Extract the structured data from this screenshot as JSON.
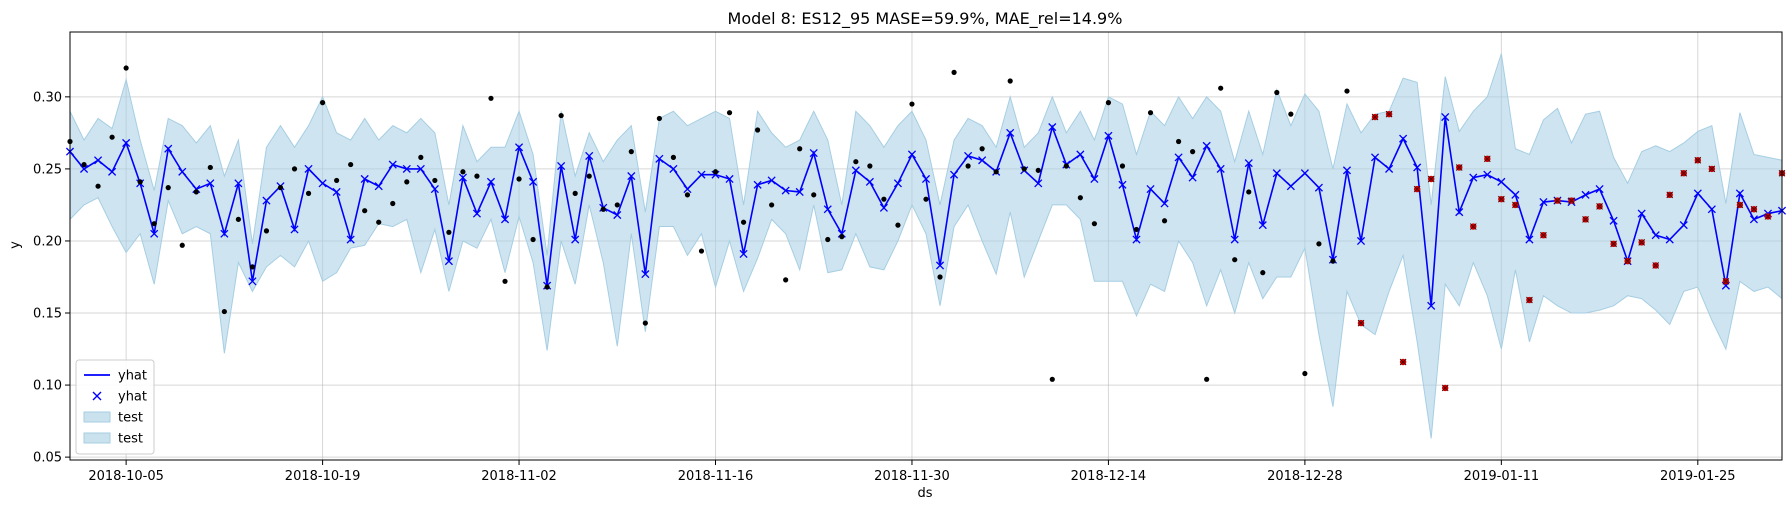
{
  "chart_data": {
    "type": "line",
    "title": "Model 8: ES12_95 MASE=59.9%, MAE_rel=14.9%",
    "xlabel": "ds",
    "ylabel": "y",
    "x_start": "2018-10-01",
    "x_end": "2019-01-31",
    "ylim": [
      0.048,
      0.345
    ],
    "xticks": [
      "2018-10-05",
      "2018-10-19",
      "2018-11-02",
      "2018-11-16",
      "2018-11-30",
      "2018-12-14",
      "2018-12-28",
      "2019-01-11",
      "2019-01-25"
    ],
    "yticks": [
      "0.05",
      "0.10",
      "0.15",
      "0.20",
      "0.25",
      "0.30"
    ],
    "grid": true,
    "legend": {
      "position": "lower-left",
      "entries": [
        "yhat",
        "yhat",
        "test",
        "test"
      ]
    },
    "colors": {
      "line": "#0000ff",
      "band": "#a6cee3",
      "actual": "#000000",
      "test_points": "#cc0000"
    },
    "yhat": [
      0.262,
      0.25,
      0.256,
      0.248,
      0.268,
      0.24,
      0.205,
      0.264,
      0.248,
      0.236,
      0.24,
      0.205,
      0.24,
      0.172,
      0.228,
      0.238,
      0.208,
      0.25,
      0.24,
      0.234,
      0.201,
      0.243,
      0.238,
      0.253,
      0.25,
      0.25,
      0.236,
      0.186,
      0.244,
      0.219,
      0.241,
      0.215,
      0.265,
      0.241,
      0.169,
      0.252,
      0.201,
      0.259,
      0.223,
      0.218,
      0.245,
      0.177,
      0.257,
      0.25,
      0.236,
      0.246,
      0.246,
      0.243,
      0.191,
      0.239,
      0.242,
      0.235,
      0.234,
      0.261,
      0.222,
      0.205,
      0.249,
      0.241,
      0.223,
      0.24,
      0.26,
      0.243,
      0.183,
      0.246,
      0.259,
      0.256,
      0.248,
      0.275,
      0.249,
      0.24,
      0.279,
      0.253,
      0.26,
      0.243,
      0.273,
      0.239,
      0.201,
      0.236,
      0.226,
      0.258,
      0.244,
      0.266,
      0.25,
      0.201,
      0.254,
      0.211,
      0.247,
      0.238,
      0.247,
      0.237,
      0.187,
      0.249,
      0.2,
      0.258,
      0.25,
      0.271,
      0.251,
      0.155,
      0.286,
      0.22,
      0.244,
      0.246,
      0.241,
      0.232,
      0.201,
      0.227,
      0.228,
      0.227,
      0.232,
      0.236,
      0.214,
      0.186,
      0.219,
      0.204,
      0.201,
      0.211,
      0.233,
      0.222,
      0.169,
      0.233,
      0.215,
      0.219,
      0.221
    ],
    "upper": [
      0.29,
      0.27,
      0.285,
      0.278,
      0.312,
      0.27,
      0.235,
      0.285,
      0.28,
      0.268,
      0.28,
      0.245,
      0.27,
      0.198,
      0.265,
      0.28,
      0.265,
      0.28,
      0.3,
      0.275,
      0.27,
      0.285,
      0.27,
      0.28,
      0.275,
      0.285,
      0.275,
      0.225,
      0.28,
      0.255,
      0.265,
      0.265,
      0.29,
      0.26,
      0.19,
      0.29,
      0.245,
      0.275,
      0.255,
      0.27,
      0.28,
      0.22,
      0.285,
      0.29,
      0.28,
      0.285,
      0.29,
      0.285,
      0.225,
      0.29,
      0.275,
      0.265,
      0.27,
      0.29,
      0.27,
      0.225,
      0.29,
      0.28,
      0.265,
      0.28,
      0.29,
      0.27,
      0.225,
      0.27,
      0.285,
      0.28,
      0.265,
      0.3,
      0.265,
      0.275,
      0.3,
      0.275,
      0.29,
      0.27,
      0.3,
      0.295,
      0.26,
      0.29,
      0.28,
      0.3,
      0.285,
      0.3,
      0.29,
      0.255,
      0.29,
      0.26,
      0.305,
      0.28,
      0.302,
      0.29,
      0.25,
      0.295,
      0.275,
      0.288,
      0.29,
      0.313,
      0.31,
      0.225,
      0.314,
      0.276,
      0.29,
      0.3,
      0.33,
      0.264,
      0.26,
      0.284,
      0.292,
      0.268,
      0.288,
      0.29,
      0.258,
      0.24,
      0.262,
      0.266,
      0.262,
      0.268,
      0.276,
      0.28,
      0.226,
      0.289,
      0.26,
      0.258,
      0.256
    ],
    "lower": [
      0.215,
      0.225,
      0.23,
      0.21,
      0.192,
      0.205,
      0.17,
      0.228,
      0.205,
      0.21,
      0.205,
      0.122,
      0.185,
      0.165,
      0.182,
      0.19,
      0.182,
      0.2,
      0.172,
      0.178,
      0.195,
      0.197,
      0.212,
      0.21,
      0.215,
      0.178,
      0.208,
      0.165,
      0.2,
      0.195,
      0.215,
      0.178,
      0.217,
      0.185,
      0.124,
      0.2,
      0.17,
      0.225,
      0.185,
      0.127,
      0.205,
      0.137,
      0.21,
      0.21,
      0.19,
      0.205,
      0.168,
      0.2,
      0.165,
      0.188,
      0.215,
      0.205,
      0.18,
      0.225,
      0.178,
      0.18,
      0.205,
      0.182,
      0.18,
      0.2,
      0.225,
      0.205,
      0.155,
      0.21,
      0.225,
      0.2,
      0.177,
      0.22,
      0.175,
      0.2,
      0.225,
      0.225,
      0.215,
      0.172,
      0.172,
      0.172,
      0.148,
      0.17,
      0.165,
      0.2,
      0.185,
      0.155,
      0.18,
      0.15,
      0.185,
      0.16,
      0.175,
      0.175,
      0.195,
      0.135,
      0.085,
      0.165,
      0.142,
      0.135,
      0.165,
      0.19,
      0.13,
      0.063,
      0.17,
      0.155,
      0.185,
      0.162,
      0.125,
      0.18,
      0.13,
      0.162,
      0.155,
      0.15,
      0.15,
      0.152,
      0.155,
      0.162,
      0.16,
      0.152,
      0.142,
      0.165,
      0.168,
      0.145,
      0.125,
      0.172,
      0.165,
      0.168,
      0.16
    ],
    "actual_points": [
      [
        0,
        0.269
      ],
      [
        1,
        0.253
      ],
      [
        2,
        0.238
      ],
      [
        3,
        0.272
      ],
      [
        4,
        0.32
      ],
      [
        5,
        0.241
      ],
      [
        6,
        0.212
      ],
      [
        7,
        0.237
      ],
      [
        8,
        0.197
      ],
      [
        9,
        0.234
      ],
      [
        10,
        0.251
      ],
      [
        11,
        0.151
      ],
      [
        12,
        0.215
      ],
      [
        13,
        0.182
      ],
      [
        14,
        0.207
      ],
      [
        15,
        0.237
      ],
      [
        16,
        0.25
      ],
      [
        17,
        0.233
      ],
      [
        18,
        0.296
      ],
      [
        19,
        0.242
      ],
      [
        20,
        0.253
      ],
      [
        21,
        0.221
      ],
      [
        22,
        0.213
      ],
      [
        23,
        0.226
      ],
      [
        24,
        0.241
      ],
      [
        25,
        0.258
      ],
      [
        26,
        0.242
      ],
      [
        27,
        0.206
      ],
      [
        28,
        0.248
      ],
      [
        29,
        0.245
      ],
      [
        30,
        0.299
      ],
      [
        31,
        0.172
      ],
      [
        32,
        0.243
      ],
      [
        33,
        0.201
      ],
      [
        34,
        0.168
      ],
      [
        35,
        0.287
      ],
      [
        36,
        0.233
      ],
      [
        37,
        0.245
      ],
      [
        38,
        0.222
      ],
      [
        39,
        0.225
      ],
      [
        40,
        0.262
      ],
      [
        41,
        0.143
      ],
      [
        42,
        0.285
      ],
      [
        43,
        0.258
      ],
      [
        44,
        0.232
      ],
      [
        45,
        0.193
      ],
      [
        46,
        0.248
      ],
      [
        47,
        0.289
      ],
      [
        48,
        0.213
      ],
      [
        49,
        0.277
      ],
      [
        50,
        0.225
      ],
      [
        51,
        0.173
      ],
      [
        52,
        0.264
      ],
      [
        53,
        0.232
      ],
      [
        54,
        0.201
      ],
      [
        55,
        0.203
      ],
      [
        56,
        0.255
      ],
      [
        57,
        0.252
      ],
      [
        58,
        0.229
      ],
      [
        59,
        0.211
      ],
      [
        60,
        0.295
      ],
      [
        61,
        0.229
      ],
      [
        62,
        0.175
      ],
      [
        63,
        0.317
      ],
      [
        64,
        0.252
      ],
      [
        65,
        0.264
      ],
      [
        66,
        0.248
      ],
      [
        67,
        0.311
      ],
      [
        68,
        0.25
      ],
      [
        69,
        0.249
      ],
      [
        70,
        0.104
      ],
      [
        71,
        0.252
      ],
      [
        72,
        0.23
      ],
      [
        73,
        0.212
      ],
      [
        74,
        0.296
      ],
      [
        75,
        0.252
      ],
      [
        76,
        0.208
      ],
      [
        77,
        0.289
      ],
      [
        78,
        0.214
      ],
      [
        79,
        0.269
      ],
      [
        80,
        0.262
      ],
      [
        81,
        0.104
      ],
      [
        82,
        0.306
      ],
      [
        83,
        0.187
      ],
      [
        84,
        0.234
      ],
      [
        85,
        0.178
      ],
      [
        86,
        0.303
      ],
      [
        87,
        0.288
      ],
      [
        88,
        0.108
      ],
      [
        89,
        0.198
      ],
      [
        90,
        0.186
      ],
      [
        91,
        0.304
      ]
    ],
    "test_points": [
      [
        92,
        0.143
      ],
      [
        93,
        0.286
      ],
      [
        94,
        0.288
      ],
      [
        95,
        0.116
      ],
      [
        96,
        0.236
      ],
      [
        97,
        0.243
      ],
      [
        98,
        0.098
      ],
      [
        99,
        0.251
      ],
      [
        100,
        0.21
      ],
      [
        101,
        0.257
      ],
      [
        102,
        0.229
      ],
      [
        103,
        0.225
      ],
      [
        104,
        0.159
      ],
      [
        105,
        0.204
      ],
      [
        106,
        0.228
      ],
      [
        107,
        0.228
      ],
      [
        108,
        0.215
      ],
      [
        109,
        0.224
      ],
      [
        110,
        0.198
      ],
      [
        111,
        0.186
      ],
      [
        112,
        0.199
      ],
      [
        113,
        0.183
      ],
      [
        114,
        0.232
      ],
      [
        115,
        0.247
      ],
      [
        116,
        0.256
      ],
      [
        117,
        0.25
      ],
      [
        118,
        0.172
      ],
      [
        119,
        0.225
      ],
      [
        120,
        0.222
      ],
      [
        121,
        0.217
      ],
      [
        122,
        0.247
      ]
    ]
  }
}
